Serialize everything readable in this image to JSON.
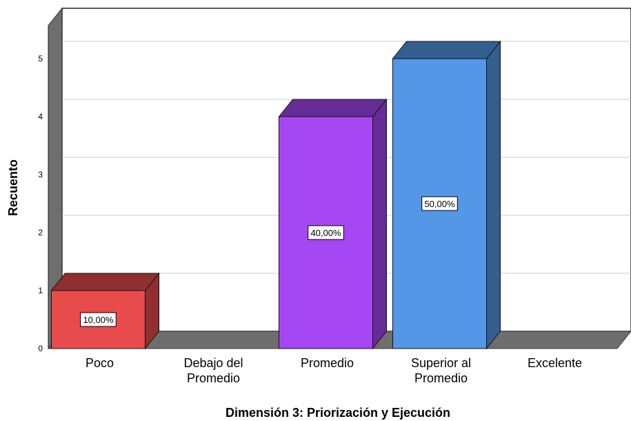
{
  "chart_data": {
    "type": "bar",
    "categories": [
      [
        "Poco"
      ],
      [
        "Debajo del",
        "Promedio"
      ],
      [
        "Promedio"
      ],
      [
        "Superior al",
        "Promedio"
      ],
      [
        "Excelente"
      ]
    ],
    "values": [
      1,
      0,
      4,
      5,
      0
    ],
    "data_labels": [
      "10,00%",
      "",
      "40,00%",
      "50,00%",
      ""
    ],
    "bar_colors": [
      "#e84b4b",
      "",
      "#a547f2",
      "#5397e6",
      ""
    ],
    "xlabel": "Dimensión 3: Priorización y Ejecución",
    "ylabel": "Recuento",
    "yticks": [
      "0",
      "1",
      "2",
      "3",
      "4",
      "5"
    ],
    "ylim": [
      0,
      5
    ],
    "grid": true,
    "style": "3d"
  }
}
